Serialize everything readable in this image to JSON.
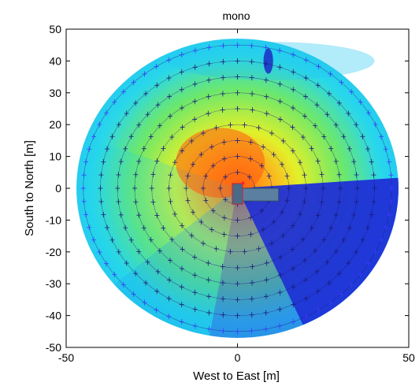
{
  "chart_data": {
    "type": "heatmap",
    "title": "mono",
    "xlabel": "West to East [m]",
    "ylabel": "South to North [m]",
    "xlim": [
      -50,
      50
    ],
    "ylim": [
      -50,
      50
    ],
    "xticks": [
      -50,
      0,
      50
    ],
    "yticks": [
      -50,
      -40,
      -30,
      -20,
      -10,
      0,
      10,
      20,
      30,
      40,
      50
    ],
    "grid": false,
    "rings_radius_m": [
      5,
      10,
      15,
      20,
      25,
      30,
      35,
      40,
      45
    ],
    "marker_count_per_ring": [
      8,
      16,
      24,
      30,
      36,
      44,
      52,
      60,
      68
    ],
    "source_position_m": [
      0,
      0
    ],
    "receiver_box_m": {
      "x0": 0,
      "x1": 12,
      "y0": -4,
      "y1": 0
    },
    "colormap": "jet",
    "colors": {
      "marker": "#1a1a7a",
      "outer_marker": "#3a3aff",
      "low": "#1f2fd6",
      "mid": "#20d2e8",
      "high": "#ff7a10",
      "box_fill": "#5b7fa0",
      "source": "#ff2030"
    }
  }
}
